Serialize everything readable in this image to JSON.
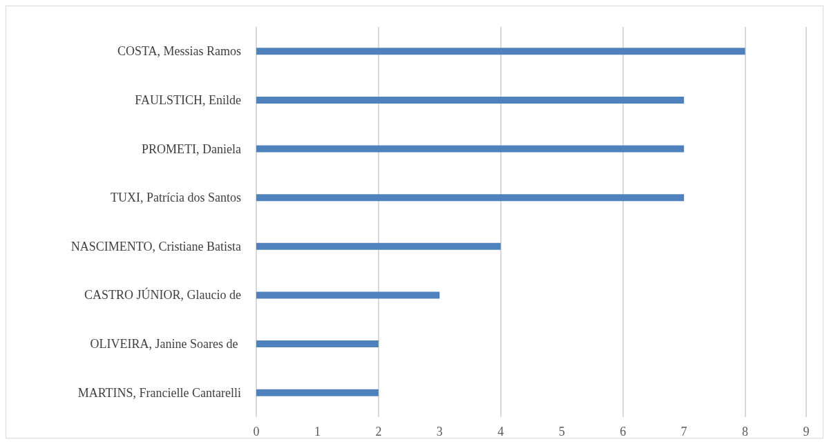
{
  "chart_data": {
    "type": "bar",
    "orientation": "horizontal",
    "categories": [
      "COSTA, Messias Ramos",
      "FAULSTICH, Enilde",
      "PROMETI, Daniela",
      "TUXI, Patrícia dos Santos",
      "NASCIMENTO, Cristiane Batista",
      "CASTRO JÚNIOR, Glaucio de",
      "OLIVEIRA, Janine Soares de ",
      "MARTINS, Francielle Cantarelli"
    ],
    "values": [
      8,
      7,
      7,
      7,
      4,
      3,
      2,
      2
    ],
    "color": "#4f81bd",
    "xlim": [
      0,
      9
    ],
    "xticks": [
      0,
      1,
      2,
      3,
      4,
      5,
      6,
      7,
      8,
      9
    ],
    "grid": "x"
  }
}
